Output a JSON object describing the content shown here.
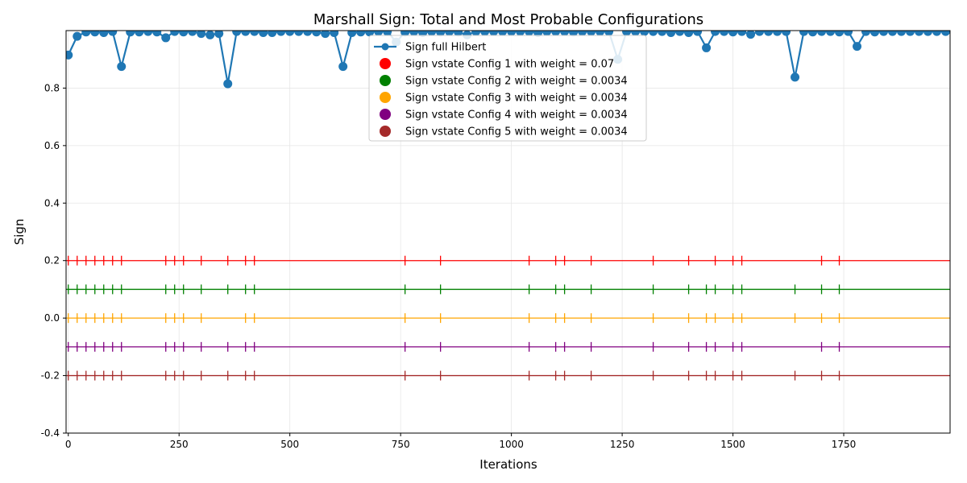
{
  "chart_data": {
    "type": "line",
    "title": "Marshall Sign: Total and Most Probable Configurations",
    "xlabel": "Iterations",
    "ylabel": "Sign",
    "xlim": [
      -5,
      1990
    ],
    "ylim": [
      -0.4,
      1.0
    ],
    "x_ticks": [
      0,
      250,
      500,
      750,
      1000,
      1250,
      1500,
      1750
    ],
    "y_ticks": [
      -0.4,
      -0.2,
      0.0,
      0.2,
      0.4,
      0.6,
      0.8
    ],
    "grid": true,
    "legend_position": "top-center",
    "full_hilbert": {
      "name": "Sign full Hilbert",
      "color": "#1f77b4",
      "x": [
        0,
        20,
        40,
        60,
        80,
        100,
        120,
        140,
        160,
        180,
        200,
        220,
        240,
        260,
        280,
        300,
        320,
        340,
        360,
        380,
        400,
        420,
        440,
        460,
        480,
        500,
        520,
        540,
        560,
        580,
        600,
        620,
        640,
        660,
        680,
        700,
        720,
        740,
        760,
        780,
        800,
        820,
        840,
        860,
        880,
        900,
        920,
        940,
        960,
        980,
        1000,
        1020,
        1040,
        1060,
        1080,
        1100,
        1120,
        1140,
        1160,
        1180,
        1200,
        1220,
        1240,
        1260,
        1280,
        1300,
        1320,
        1340,
        1360,
        1380,
        1400,
        1420,
        1440,
        1460,
        1480,
        1500,
        1520,
        1540,
        1560,
        1580,
        1600,
        1620,
        1640,
        1660,
        1680,
        1700,
        1720,
        1740,
        1760,
        1780,
        1800,
        1820,
        1840,
        1860,
        1880,
        1900,
        1920,
        1940,
        1960,
        1980
      ],
      "y": [
        0.915,
        0.98,
        0.995,
        0.995,
        0.993,
        0.997,
        0.875,
        0.995,
        0.995,
        0.997,
        0.995,
        0.975,
        0.997,
        0.995,
        0.997,
        0.99,
        0.985,
        0.99,
        0.815,
        0.997,
        0.997,
        0.997,
        0.993,
        0.993,
        0.997,
        0.997,
        0.997,
        0.997,
        0.995,
        0.99,
        0.993,
        0.875,
        0.993,
        0.995,
        0.995,
        0.997,
        0.997,
        0.96,
        0.995,
        0.997,
        0.993,
        0.997,
        0.995,
        0.997,
        0.995,
        0.985,
        0.997,
        0.997,
        0.997,
        0.997,
        0.997,
        0.997,
        0.997,
        0.993,
        0.997,
        0.997,
        0.997,
        0.995,
        0.997,
        0.997,
        0.997,
        0.997,
        0.9,
        0.997,
        0.997,
        0.997,
        0.997,
        0.997,
        0.993,
        0.997,
        0.993,
        0.997,
        0.94,
        0.997,
        0.997,
        0.995,
        0.997,
        0.987,
        0.997,
        0.997,
        0.997,
        0.997,
        0.838,
        0.997,
        0.995,
        0.997,
        0.997,
        0.995,
        0.997,
        0.945,
        0.997,
        0.995,
        0.997,
        0.997,
        0.997,
        0.997,
        0.997,
        0.997,
        0.997,
        0.997
      ]
    },
    "series": [
      {
        "name": "Sign vstate Config 1 with weight = 0.07",
        "color": "#ff0000",
        "baseline": 0.2,
        "spikes": [
          0,
          20,
          40,
          60,
          80,
          100,
          120,
          220,
          240,
          260,
          300,
          360,
          400,
          420,
          760,
          840,
          1040,
          1100,
          1120,
          1180,
          1320,
          1400,
          1460,
          1500,
          1520,
          1700,
          1740
        ]
      },
      {
        "name": "Sign vstate Config 2 with weight = 0.0034",
        "color": "#008000",
        "baseline": 0.1,
        "spikes": [
          0,
          20,
          40,
          60,
          80,
          100,
          120,
          220,
          240,
          260,
          300,
          360,
          400,
          420,
          760,
          840,
          1040,
          1100,
          1120,
          1180,
          1320,
          1400,
          1440,
          1460,
          1500,
          1520,
          1640,
          1700,
          1740
        ]
      },
      {
        "name": "Sign vstate Config 3 with weight = 0.0034",
        "color": "#ffa500",
        "baseline": 0.0,
        "spikes": [
          0,
          20,
          40,
          60,
          80,
          100,
          120,
          220,
          240,
          260,
          300,
          400,
          420,
          760,
          840,
          1040,
          1100,
          1120,
          1180,
          1320,
          1400,
          1440,
          1460,
          1500,
          1520,
          1640,
          1700,
          1740
        ]
      },
      {
        "name": "Sign vstate Config 4 with weight = 0.0034",
        "color": "#800080",
        "baseline": -0.1,
        "spikes": [
          0,
          20,
          40,
          60,
          80,
          100,
          120,
          220,
          240,
          260,
          300,
          360,
          400,
          420,
          760,
          840,
          1040,
          1100,
          1120,
          1180,
          1320,
          1400,
          1440,
          1460,
          1500,
          1520,
          1700,
          1740
        ]
      },
      {
        "name": "Sign vstate Config 5 with weight = 0.0034",
        "color": "#a52a2a",
        "baseline": -0.2,
        "spikes": [
          0,
          20,
          40,
          60,
          80,
          100,
          120,
          220,
          240,
          260,
          300,
          360,
          400,
          420,
          760,
          840,
          1040,
          1100,
          1120,
          1180,
          1320,
          1400,
          1440,
          1460,
          1500,
          1520,
          1640,
          1700,
          1740
        ]
      }
    ]
  }
}
